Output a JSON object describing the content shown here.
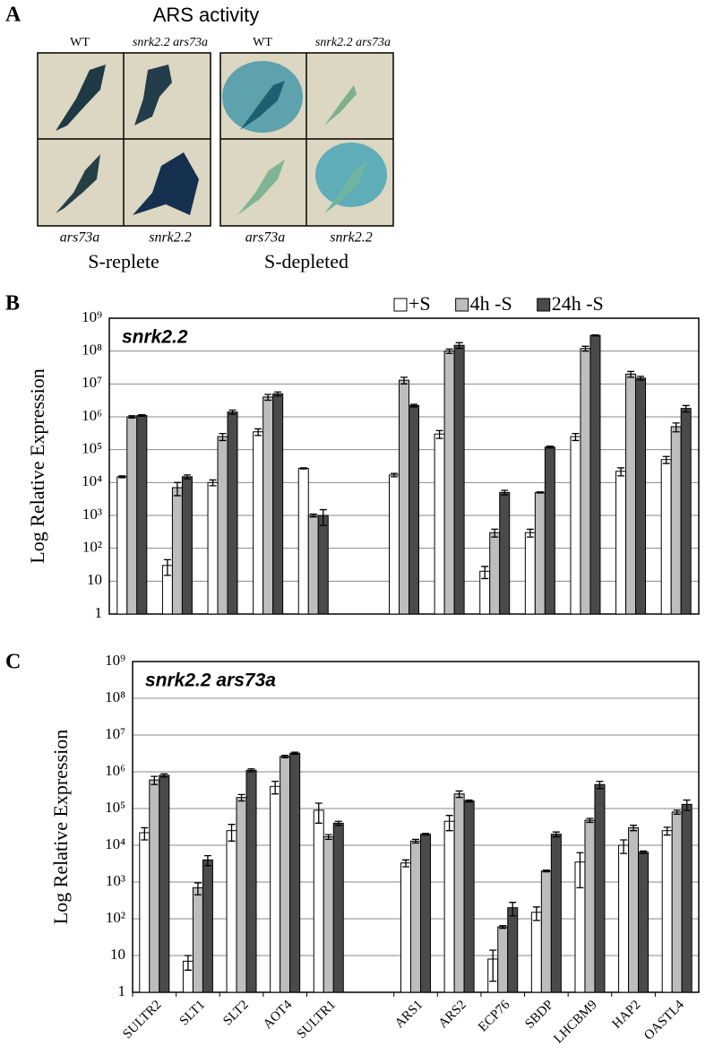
{
  "panel_a": {
    "panel_label": "A",
    "title": "ARS activity",
    "groups": [
      {
        "label": "S-replete",
        "top_labels": [
          "WT",
          "snrk2.2 ars73a"
        ],
        "bottom_labels": [
          "ars73a",
          "snrk2.2"
        ]
      },
      {
        "label": "S-depleted",
        "top_labels": [
          "WT",
          "snrk2.2 ars73a"
        ],
        "bottom_labels": [
          "ars73a",
          "snrk2.2"
        ]
      }
    ]
  },
  "chart_data": [
    {
      "type": "bar",
      "panel_label": "B",
      "title": "snrk2.2",
      "ylabel": "Log Relative Expression",
      "log_scale": true,
      "ylim": [
        1,
        1000000000
      ],
      "yticks": [
        1,
        10,
        {
          "value": 100,
          "label": "10²"
        },
        {
          "value": 1000,
          "label": "10³"
        },
        {
          "value": 10000,
          "label": "10⁴"
        },
        {
          "value": 100000,
          "label": "10⁵"
        },
        {
          "value": 1000000,
          "label": "10⁶"
        },
        {
          "value": 10000000,
          "label": "10⁷"
        },
        {
          "value": 100000000,
          "label": "10⁸"
        },
        {
          "value": 1000000000,
          "label": "10⁹"
        }
      ],
      "grid": true,
      "legend": "top-right",
      "series": [
        {
          "name": "+S",
          "color": "#ffffff",
          "values": [
            15000,
            30,
            10000,
            350000,
            27000,
            null,
            17000,
            300000,
            20,
            300,
            250000,
            22000,
            50000
          ],
          "errors": [
            1000,
            15,
            2000,
            80000,
            1000,
            null,
            2000,
            80000,
            8,
            80,
            60000,
            6000,
            12000
          ]
        },
        {
          "name": "4h -S",
          "color": "#bdbdbd",
          "values": [
            1000000,
            7000,
            250000,
            4000000,
            1000,
            null,
            13000000,
            100000000,
            300,
            5000,
            120000000,
            20000000,
            500000
          ],
          "errors": [
            80000,
            3000,
            60000,
            800000,
            100,
            null,
            3000000,
            15000000,
            80,
            200,
            20000000,
            4000000,
            150000
          ]
        },
        {
          "name": "24h -S",
          "color": "#4a4a4a",
          "values": [
            1100000,
            15000,
            1400000,
            5000000,
            1000,
            null,
            2200000,
            150000000,
            5000,
            120000,
            300000000,
            15000000,
            1800000
          ],
          "errors": [
            60000,
            2000,
            200000,
            700000,
            500,
            null,
            200000,
            30000000,
            800,
            8000,
            10000000,
            2000000,
            400000
          ]
        }
      ]
    },
    {
      "type": "bar",
      "panel_label": "C",
      "title": "snrk2.2 ars73a",
      "ylabel": "Log Relative Expression",
      "log_scale": true,
      "ylim": [
        1,
        1000000000
      ],
      "yticks": [
        1,
        10,
        {
          "value": 100,
          "label": "10²"
        },
        {
          "value": 1000,
          "label": "10³"
        },
        {
          "value": 10000,
          "label": "10⁴"
        },
        {
          "value": 100000,
          "label": "10⁵"
        },
        {
          "value": 1000000,
          "label": "10⁶"
        },
        {
          "value": 10000000,
          "label": "10⁷"
        },
        {
          "value": 100000000,
          "label": "10⁸"
        },
        {
          "value": 1000000000,
          "label": "10⁹"
        }
      ],
      "grid": true,
      "categories": [
        "SULTR2",
        "SLT1",
        "SLT2",
        "AOT4",
        "SULTR1",
        null,
        "ARS1",
        "ARS2",
        "ECP76",
        "SBDP",
        "LHCBM9",
        "HAP2",
        "OASTL4"
      ],
      "series": [
        {
          "color": "#ffffff",
          "values": [
            22000,
            7,
            25000,
            400000,
            90000,
            null,
            3300,
            45000,
            8,
            150,
            3500,
            10000,
            25000
          ],
          "errors": [
            8000,
            3,
            12000,
            150000,
            50000,
            null,
            700,
            20000,
            6,
            60,
            2800,
            4000,
            6000
          ]
        },
        {
          "color": "#bdbdbd",
          "values": [
            600000,
            700,
            200000,
            2600000,
            17000,
            null,
            13000,
            250000,
            60,
            2000,
            48000,
            30000,
            80000
          ],
          "errors": [
            150000,
            250,
            40000,
            200000,
            2500,
            null,
            1500,
            50000,
            5,
            100,
            6000,
            5000,
            10000
          ]
        },
        {
          "color": "#4a4a4a",
          "values": [
            800000,
            4000,
            1100000,
            3200000,
            40000,
            null,
            20000,
            160000,
            200,
            20000,
            450000,
            6500,
            130000
          ],
          "errors": [
            80000,
            1200,
            100000,
            200000,
            5000,
            null,
            1000,
            10000,
            80,
            3000,
            100000,
            500,
            40000
          ]
        }
      ]
    }
  ]
}
